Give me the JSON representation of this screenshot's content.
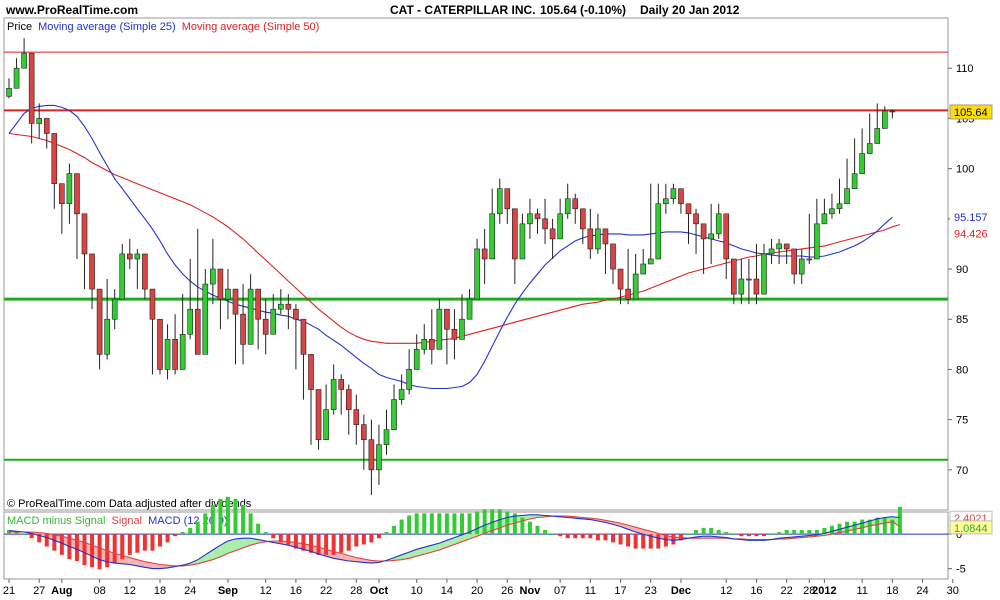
{
  "header": {
    "site": "www.ProRealTime.com",
    "title": "CAT - CATERPILLAR INC.",
    "price_text": "105.64 (-0.10%)",
    "period_date": "Daily  20 Jan 2012"
  },
  "legend": {
    "price": "Price",
    "ma25": "Moving average (Simple 25)",
    "ma50": "Moving average (Simple 50)"
  },
  "footer_note": "© ProRealTime.com  Data adjusted after dividends",
  "macd_legend": {
    "hist": "MACD minus Signal",
    "signal": "Signal",
    "macd": "MACD (12 26 9)"
  },
  "colors": {
    "up": "#33cc33",
    "down": "#d94444",
    "ma25": "#2233cc",
    "ma50": "#dd2222",
    "support": "#22aa22",
    "resistance": "#dd2222",
    "price_tag": "#ffdd00"
  },
  "chart_data": [
    {
      "type": "candlestick",
      "title": "CAT - CATERPILLAR INC.",
      "ylim": [
        66,
        115
      ],
      "y_ticks": [
        70,
        75,
        80,
        85,
        90,
        95,
        100,
        105,
        110
      ],
      "x_ticks": [
        {
          "i": 0,
          "label": "21"
        },
        {
          "i": 4,
          "label": "27"
        },
        {
          "i": 7,
          "label": "Aug"
        },
        {
          "i": 12,
          "label": "08"
        },
        {
          "i": 16,
          "label": "12"
        },
        {
          "i": 20,
          "label": "18"
        },
        {
          "i": 24,
          "label": "24"
        },
        {
          "i": 29,
          "label": "Sep"
        },
        {
          "i": 34,
          "label": "12"
        },
        {
          "i": 38,
          "label": "16"
        },
        {
          "i": 42,
          "label": "22"
        },
        {
          "i": 46,
          "label": "28"
        },
        {
          "i": 49,
          "label": "Oct"
        },
        {
          "i": 54,
          "label": "10"
        },
        {
          "i": 58,
          "label": "14"
        },
        {
          "i": 62,
          "label": "20"
        },
        {
          "i": 66,
          "label": "26"
        },
        {
          "i": 69,
          "label": "Nov"
        },
        {
          "i": 73,
          "label": "07"
        },
        {
          "i": 77,
          "label": "11"
        },
        {
          "i": 81,
          "label": "17"
        },
        {
          "i": 85,
          "label": "23"
        },
        {
          "i": 89,
          "label": "Dec"
        },
        {
          "i": 95,
          "label": "12"
        },
        {
          "i": 99,
          "label": "16"
        },
        {
          "i": 103,
          "label": "22"
        },
        {
          "i": 106,
          "label": "28"
        },
        {
          "i": 108,
          "label": "2012"
        },
        {
          "i": 113,
          "label": "11"
        },
        {
          "i": 117,
          "label": "18"
        },
        {
          "i": 121,
          "label": "24"
        },
        {
          "i": 125,
          "label": "30"
        }
      ],
      "price_label": "105.64",
      "ma25_label": "95.157",
      "ma50_label": "94.426",
      "hlines": [
        {
          "name": "resistance-line-high",
          "value": 111.6,
          "color": "#dd2222",
          "width": 1
        },
        {
          "name": "resistance-line",
          "value": 105.8,
          "color": "#dd2222",
          "width": 2
        },
        {
          "name": "support-line",
          "value": 87.0,
          "color": "#22aa22",
          "width": 3
        },
        {
          "name": "support-line-low",
          "value": 71.0,
          "color": "#22aa22",
          "width": 2
        }
      ],
      "close": [
        108,
        110,
        111.5,
        104.5,
        105,
        103.5,
        98.5,
        96.5,
        99.5,
        95.5,
        91.5,
        88,
        81.5,
        85,
        87,
        91.5,
        91,
        91.5,
        88,
        85,
        80,
        83,
        80,
        83.5,
        86,
        81.5,
        88.5,
        90,
        87,
        88,
        85.5,
        82.5,
        88,
        85,
        83.5,
        86,
        86.5,
        86,
        85,
        81.5,
        78,
        73,
        76,
        79,
        78,
        76,
        74.5,
        73,
        70,
        72.5,
        74,
        77,
        78,
        80,
        82,
        83,
        82,
        86,
        84,
        83,
        85,
        87,
        92,
        91,
        95.5,
        98,
        96,
        91,
        94.5,
        95.5,
        95,
        94,
        93,
        95.5,
        97,
        96,
        94,
        92,
        94,
        92.5,
        90,
        88,
        87,
        89.5,
        90.5,
        91,
        96.5,
        97,
        98,
        96.5,
        95.5,
        94.5,
        93,
        93.5,
        95.5,
        91,
        87.5,
        89,
        89,
        87.5,
        91.5,
        92,
        92.5,
        92,
        89.5,
        91,
        91,
        94.5,
        95.5,
        96,
        96.5,
        98,
        99.5,
        101.5,
        102.5,
        104,
        105.74,
        105.64
      ],
      "high": [
        109,
        111,
        113,
        106,
        106.5,
        105,
        101,
        98,
        100.5,
        97,
        93,
        91,
        86,
        89,
        88,
        92.5,
        93,
        92,
        89.5,
        87,
        82.5,
        84.5,
        85.5,
        87.5,
        91,
        94,
        90,
        93,
        89,
        90,
        87,
        88.5,
        89.5,
        86.5,
        87,
        87.5,
        88,
        87.5,
        86.5,
        85,
        80,
        77.5,
        78.5,
        80.5,
        79.5,
        78.5,
        77.5,
        75.5,
        75,
        74.5,
        76,
        78.5,
        79.5,
        82,
        83.5,
        84.5,
        86,
        87,
        86,
        86,
        87.5,
        88,
        93,
        94,
        98,
        99,
        97,
        95,
        95.5,
        97,
        96,
        97,
        95,
        97,
        98.5,
        97.5,
        95.5,
        96,
        95.5,
        93,
        91,
        89.5,
        92,
        91.5,
        92,
        98.5,
        98.5,
        98.5,
        98.5,
        97,
        96.5,
        96,
        94.5,
        96.5,
        96.5,
        93,
        90,
        91,
        91,
        92.5,
        92.5,
        93,
        93,
        92.5,
        91,
        92,
        95.5,
        97,
        97,
        97.5,
        99,
        101,
        103,
        104,
        105.5,
        106.5,
        106.2,
        105.9
      ],
      "low": [
        107,
        108.5,
        110.5,
        102.5,
        103,
        102,
        96,
        93.5,
        94.5,
        91,
        88,
        86,
        80,
        81,
        84,
        89,
        90,
        88,
        87,
        79.5,
        79.5,
        79,
        79.5,
        80,
        83,
        84,
        85,
        86.5,
        84,
        85,
        80.5,
        80.5,
        83.5,
        82,
        81.5,
        84.5,
        85.5,
        84,
        80,
        77,
        72.5,
        72,
        74,
        75.5,
        75.5,
        73.5,
        72.5,
        70,
        67.5,
        68.5,
        71.5,
        74.5,
        76.5,
        77.5,
        80,
        81.5,
        80.5,
        82,
        80.5,
        81,
        84,
        86,
        91,
        88.5,
        93,
        94.5,
        94.5,
        88.5,
        92,
        93,
        93.5,
        92.5,
        91,
        93.5,
        95,
        94.5,
        92.5,
        91,
        91.5,
        89.5,
        88.5,
        86.5,
        86.5,
        88.5,
        89.5,
        91,
        95.5,
        95.5,
        96.5,
        95.5,
        92.5,
        91.5,
        89.5,
        90.5,
        93,
        89,
        86.5,
        86.5,
        86.5,
        86.5,
        89.5,
        90.5,
        90.5,
        90.5,
        88.5,
        88.5,
        90.5,
        93,
        94.5,
        95,
        95.5,
        97,
        98.5,
        100.5,
        101.5,
        102.5,
        104,
        105
      ],
      "ma25": [
        103.5,
        104.5,
        105.5,
        106,
        106.2,
        106.3,
        106.3,
        106.1,
        105.8,
        105.2,
        104.2,
        103,
        101.6,
        100.3,
        99,
        98,
        97,
        96,
        95,
        94,
        92.8,
        91.5,
        90.4,
        89.5,
        88.8,
        88.2,
        87.8,
        87.4,
        87.1,
        86.8,
        86.5,
        86.3,
        86.1,
        85.9,
        85.7,
        85.6,
        85.4,
        85.3,
        85,
        84.8,
        84.4,
        84,
        83.4,
        82.9,
        82.4,
        81.8,
        81.2,
        80.6,
        80.1,
        79.5,
        79.2,
        79,
        78.8,
        78.5,
        78.3,
        78.2,
        78.1,
        78.1,
        78.1,
        78.2,
        78.3,
        78.7,
        79.5,
        80.8,
        82.3,
        83.8,
        85.2,
        86.5,
        87.6,
        88.6,
        89.5,
        90.4,
        91.1,
        91.8,
        92.3,
        92.8,
        93.1,
        93.3,
        93.4,
        93.5,
        93.5,
        93.5,
        93.4,
        93.4,
        93.4,
        93.5,
        93.6,
        93.7,
        93.7,
        93.7,
        93.6,
        93.4,
        93.2,
        93,
        92.8,
        92.6,
        92.3,
        92,
        91.8,
        91.6,
        91.5,
        91.4,
        91.3,
        91.3,
        91.3,
        91.3,
        91.2,
        91.2,
        91.3,
        91.5,
        91.7,
        92,
        92.3,
        92.7,
        93.2,
        93.8,
        94.5,
        95.157
      ],
      "ma50": [
        103.5,
        103.4,
        103.3,
        103.2,
        103,
        102.8,
        102.5,
        102.2,
        101.9,
        101.5,
        101.1,
        100.6,
        100.2,
        99.8,
        99.4,
        99.1,
        98.8,
        98.5,
        98.2,
        97.9,
        97.6,
        97.3,
        97,
        96.7,
        96.4,
        96,
        95.6,
        95.2,
        94.7,
        94.2,
        93.6,
        93,
        92.3,
        91.6,
        90.9,
        90.2,
        89.5,
        88.8,
        88.1,
        87.4,
        86.7,
        86,
        85.4,
        84.8,
        84.2,
        83.7,
        83.3,
        83,
        82.8,
        82.7,
        82.6,
        82.6,
        82.6,
        82.6,
        82.6,
        82.7,
        82.8,
        82.9,
        83,
        83.1,
        83.3,
        83.5,
        83.7,
        83.9,
        84.1,
        84.3,
        84.5,
        84.7,
        84.9,
        85.1,
        85.3,
        85.5,
        85.7,
        85.9,
        86.1,
        86.3,
        86.5,
        86.6,
        86.7,
        86.9,
        87,
        87.2,
        87.4,
        87.6,
        87.8,
        88.1,
        88.4,
        88.7,
        89,
        89.3,
        89.6,
        89.8,
        90,
        90.2,
        90.4,
        90.6,
        90.8,
        91,
        91.2,
        91.3,
        91.5,
        91.6,
        91.7,
        91.8,
        91.9,
        92,
        92.1,
        92.2,
        92.3,
        92.5,
        92.7,
        92.9,
        93.1,
        93.3,
        93.5,
        93.7,
        93.9,
        94.2,
        94.426
      ]
    },
    {
      "type": "macd",
      "title": "MACD (12 26 9)",
      "ylim": [
        -6.5,
        3.2
      ],
      "y_ticks": [
        -5,
        0
      ],
      "macd_label": "2.4021",
      "signal_label": "1.0844",
      "macd": [
        0.5,
        0.4,
        0.3,
        0.1,
        -0.2,
        -0.5,
        -0.9,
        -1.3,
        -1.8,
        -2.2,
        -2.7,
        -3.2,
        -3.7,
        -4.0,
        -4.2,
        -4.3,
        -4.4,
        -4.6,
        -4.8,
        -5.0,
        -5.0,
        -4.9,
        -4.7,
        -4.5,
        -4.2,
        -3.7,
        -3.0,
        -2.3,
        -1.6,
        -1.0,
        -0.7,
        -0.6,
        -0.6,
        -0.8,
        -1.0,
        -1.2,
        -1.4,
        -1.6,
        -1.9,
        -2.2,
        -2.5,
        -2.9,
        -3.2,
        -3.5,
        -3.7,
        -3.9,
        -4.0,
        -4.1,
        -4.2,
        -4.1,
        -3.8,
        -3.4,
        -3.0,
        -2.6,
        -2.2,
        -1.9,
        -1.6,
        -1.3,
        -0.9,
        -0.5,
        -0.1,
        0.3,
        0.8,
        1.3,
        1.7,
        2.1,
        2.4,
        2.6,
        2.7,
        2.8,
        2.8,
        2.7,
        2.6,
        2.5,
        2.4,
        2.3,
        2.2,
        2.1,
        1.9,
        1.7,
        1.4,
        1.1,
        0.7,
        0.3,
        0.0,
        -0.3,
        -0.6,
        -0.8,
        -0.9,
        -0.8,
        -0.6,
        -0.4,
        -0.3,
        -0.3,
        -0.4,
        -0.5,
        -0.7,
        -0.8,
        -0.9,
        -0.9,
        -0.9,
        -0.8,
        -0.6,
        -0.5,
        -0.4,
        -0.3,
        -0.2,
        -0.1,
        0.1,
        0.4,
        0.7,
        1.0,
        1.3,
        1.6,
        1.9,
        2.2,
        2.4,
        2.5,
        2.4021
      ],
      "signal": [
        0.3,
        0.3,
        0.3,
        0.3,
        0.2,
        0.1,
        -0.1,
        -0.3,
        -0.6,
        -0.9,
        -1.2,
        -1.6,
        -2.0,
        -2.4,
        -2.8,
        -3.1,
        -3.4,
        -3.7,
        -4.0,
        -4.2,
        -4.4,
        -4.5,
        -4.6,
        -4.6,
        -4.5,
        -4.3,
        -4.0,
        -3.7,
        -3.3,
        -2.8,
        -2.4,
        -2.0,
        -1.6,
        -1.3,
        -1.1,
        -1.0,
        -1.0,
        -1.1,
        -1.2,
        -1.4,
        -1.6,
        -1.9,
        -2.2,
        -2.5,
        -2.8,
        -3.1,
        -3.4,
        -3.6,
        -3.8,
        -3.9,
        -3.9,
        -3.8,
        -3.7,
        -3.5,
        -3.2,
        -2.9,
        -2.6,
        -2.3,
        -1.9,
        -1.5,
        -1.1,
        -0.7,
        -0.3,
        0.1,
        0.5,
        0.9,
        1.3,
        1.6,
        1.9,
        2.2,
        2.4,
        2.5,
        2.6,
        2.6,
        2.6,
        2.5,
        2.4,
        2.3,
        2.2,
        2.0,
        1.8,
        1.6,
        1.3,
        1.0,
        0.7,
        0.4,
        0.1,
        -0.2,
        -0.4,
        -0.5,
        -0.6,
        -0.6,
        -0.6,
        -0.6,
        -0.6,
        -0.6,
        -0.7,
        -0.7,
        -0.8,
        -0.8,
        -0.8,
        -0.8,
        -0.7,
        -0.7,
        -0.6,
        -0.5,
        -0.4,
        -0.3,
        -0.2,
        0.0,
        0.2,
        0.4,
        0.7,
        0.9,
        1.2,
        1.4,
        1.6,
        1.8,
        1.0844
      ]
    }
  ]
}
